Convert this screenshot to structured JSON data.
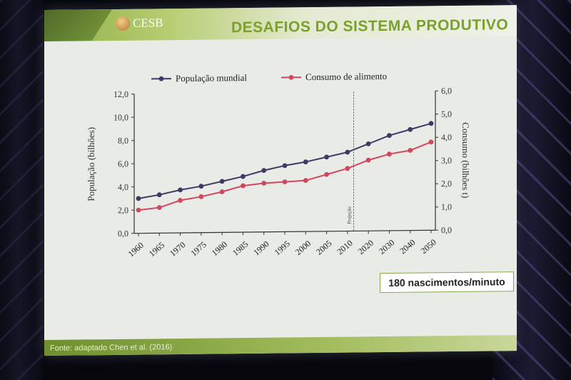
{
  "slide": {
    "logo_text": "CESB",
    "title": "DESAFIOS DO SISTEMA PRODUTIVO",
    "source": "Fonte: adaptado Chen et al. (2016)",
    "callout": "180 nascimentos/minuto"
  },
  "chart_data": {
    "type": "line",
    "categories": [
      "1960",
      "1965",
      "1970",
      "1975",
      "1980",
      "1985",
      "1990",
      "1995",
      "2000",
      "2005",
      "2010",
      "2020",
      "2030",
      "2040",
      "2050"
    ],
    "ylabel": "População (bilhões)",
    "ylabel_right": "Consumo (bilhões t)",
    "ylim": [
      0,
      12
    ],
    "ylim_right": [
      0,
      6
    ],
    "yticks_left": [
      "0,0",
      "2,0",
      "4,0",
      "6,0",
      "8,0",
      "10,0",
      "12,0"
    ],
    "yticks_right": [
      "0,0",
      "1,0",
      "2,0",
      "3,0",
      "4,0",
      "5,0",
      "6,0"
    ],
    "projection_label": "Projeção",
    "legend_position": "top",
    "series": [
      {
        "name": "População mundial",
        "axis": "left",
        "color": "#3c3a66",
        "values": [
          3.0,
          3.3,
          3.7,
          4.0,
          4.4,
          4.8,
          5.3,
          5.7,
          6.0,
          6.4,
          6.8,
          7.5,
          8.2,
          8.7,
          9.2
        ]
      },
      {
        "name": "Consumo de alimento",
        "axis": "right",
        "color": "#d2475f",
        "values": [
          1.0,
          1.1,
          1.4,
          1.55,
          1.75,
          2.0,
          2.1,
          2.15,
          2.2,
          2.45,
          2.7,
          3.05,
          3.3,
          3.45,
          3.8
        ]
      }
    ],
    "grid": false
  }
}
